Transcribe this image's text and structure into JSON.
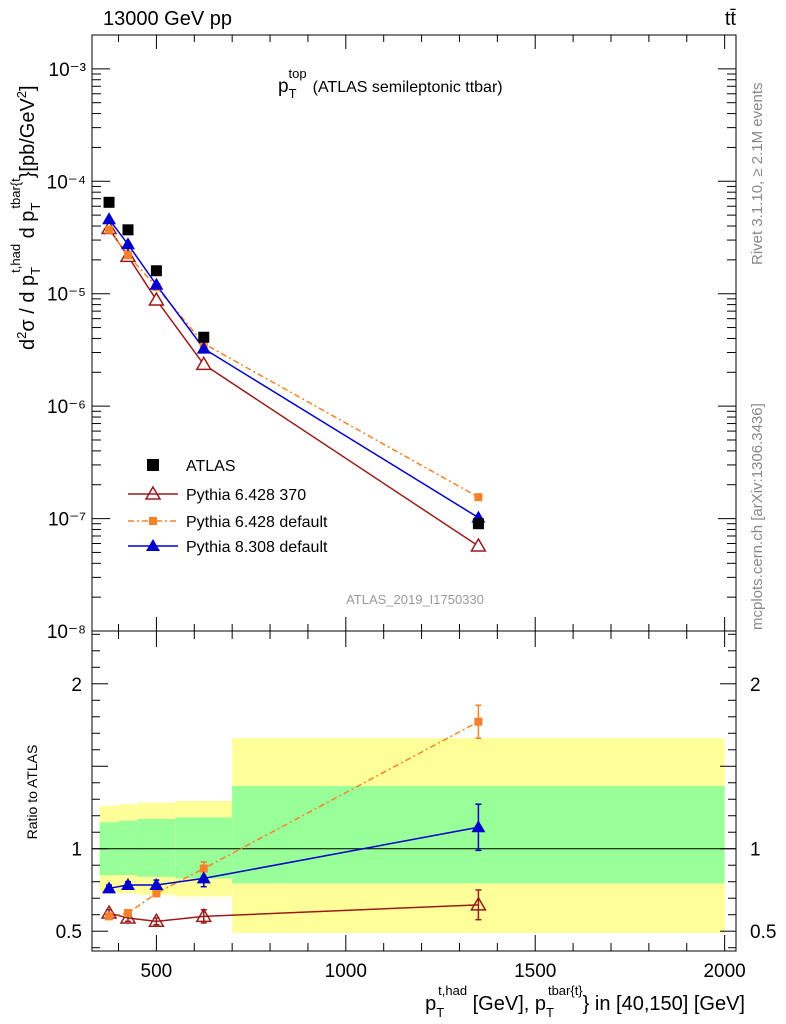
{
  "header": {
    "energy_label": "13000 GeV pp",
    "process_label": "tt̄"
  },
  "side_labels": {
    "rivet": "Rivet 3.1.10, ≥ 2.1M events",
    "source": "mcplots.cern.ch [arXiv:1306.3436]"
  },
  "colors": {
    "atlas": "#000000",
    "py6_370": "#9b1b1b",
    "py6_default": "#f5822a",
    "py8_default": "#0000cc",
    "band_inner": "#99ff99",
    "band_outer": "#ffff99"
  },
  "chart_data": [
    {
      "type": "scatter",
      "panel": "main",
      "title": "p_T^top (ATLAS semileptonic ttbar)",
      "title_main": "p",
      "title_sub": "T",
      "title_sup": "top",
      "title_rest": "(ATLAS semileptonic ttbar)",
      "analysis_label": "ATLAS_2019_I1750330",
      "ylabel": "d²σ / d p_T^{t,had} d p_T^{tbar{t}} [pb/GeV²]",
      "yscale": "log",
      "ylim": [
        1e-08,
        0.002
      ],
      "xlim": [
        330,
        2030
      ],
      "y_tick_labels": [
        "10⁻⁸",
        "10⁻⁷",
        "10⁻⁶",
        "10⁻⁵",
        "10⁻⁴",
        "10⁻³"
      ],
      "legend_position": "lower-left",
      "series": [
        {
          "name": "ATLAS",
          "marker": "filled-square",
          "color": "#000000",
          "x": [
            375,
            425,
            500,
            625,
            1350
          ],
          "y": [
            6.5e-05,
            3.7e-05,
            1.6e-05,
            4.1e-06,
            9e-08
          ]
        },
        {
          "name": "Pythia 6.428 370",
          "marker": "open-triangle",
          "color": "#9b1b1b",
          "x": [
            375,
            425,
            500,
            625,
            1350
          ],
          "y": [
            3.8e-05,
            2.15e-05,
            8.8e-06,
            2.35e-06,
            5.7e-08
          ]
        },
        {
          "name": "Pythia 6.428 default",
          "marker": "filled-square-small",
          "color": "#f5822a",
          "x": [
            375,
            425,
            500,
            625,
            1350
          ],
          "y": [
            3.7e-05,
            2.2e-05,
            1.15e-05,
            3.6e-06,
            1.55e-07
          ]
        },
        {
          "name": "Pythia 8.308 default",
          "marker": "filled-triangle",
          "color": "#0000cc",
          "x": [
            375,
            425,
            500,
            625,
            1350
          ],
          "y": [
            4.6e-05,
            2.75e-05,
            1.2e-05,
            3.25e-06,
            1.02e-07
          ]
        }
      ]
    },
    {
      "type": "scatter",
      "panel": "ratio",
      "ylabel": "Ratio to ATLAS",
      "xlabel": "p_T^{t,had} [GeV], p_T^{tbar{t}} in [40,150] [GeV]",
      "xlabel_parts": [
        "p",
        "T",
        "t,had",
        " [GeV], p",
        "T",
        "tbar{t}",
        "} in [40,150] [GeV]"
      ],
      "ylim": [
        0.38,
        2.32
      ],
      "xlim": [
        330,
        2030
      ],
      "x_tick_labels": [
        "500",
        "1000",
        "1500",
        "2000"
      ],
      "y_tick_labels": [
        "0.5",
        "1",
        "2"
      ],
      "uncertainty_bands": [
        {
          "x": [
            350,
            400
          ],
          "inner": [
            0.84,
            1.16
          ],
          "outer": [
            0.74,
            1.26
          ]
        },
        {
          "x": [
            400,
            450
          ],
          "inner": [
            0.84,
            1.17
          ],
          "outer": [
            0.73,
            1.27
          ]
        },
        {
          "x": [
            450,
            550
          ],
          "inner": [
            0.83,
            1.18
          ],
          "outer": [
            0.72,
            1.28
          ]
        },
        {
          "x": [
            550,
            700
          ],
          "inner": [
            0.82,
            1.19
          ],
          "outer": [
            0.71,
            1.29
          ]
        },
        {
          "x": [
            700,
            2000
          ],
          "inner": [
            0.79,
            1.38
          ],
          "outer": [
            0.49,
            1.67
          ]
        }
      ],
      "series": [
        {
          "name": "Pythia 6.428 370",
          "color": "#9b1b1b",
          "x": [
            375,
            425,
            500,
            625,
            1350
          ],
          "y": [
            0.61,
            0.58,
            0.56,
            0.59,
            0.66
          ],
          "err": [
            0.02,
            0.02,
            0.02,
            0.04,
            0.09
          ]
        },
        {
          "name": "Pythia 6.428 default",
          "color": "#f5822a",
          "x": [
            375,
            425,
            500,
            625,
            1350
          ],
          "y": [
            0.59,
            0.61,
            0.73,
            0.88,
            1.77
          ],
          "err": [
            0.01,
            0.02,
            0.02,
            0.04,
            0.1
          ]
        },
        {
          "name": "Pythia 8.308 default",
          "color": "#0000cc",
          "x": [
            375,
            425,
            500,
            625,
            1350
          ],
          "y": [
            0.76,
            0.78,
            0.78,
            0.82,
            1.13
          ],
          "err": [
            0.02,
            0.02,
            0.03,
            0.05,
            0.14
          ]
        }
      ]
    }
  ]
}
